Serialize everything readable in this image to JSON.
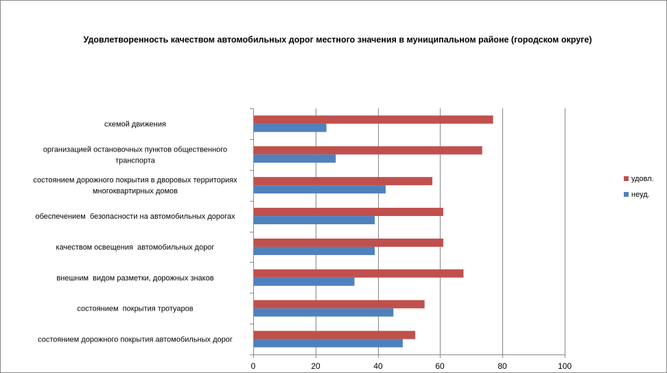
{
  "chart_data": {
    "type": "bar",
    "orientation": "horizontal",
    "title": "Удовлетворенность качеством автомобильных дорог местного значения в муниципальном районе (городском округе)",
    "categories": [
      [
        "состоянием дорожного покрытия автомобильных дорог"
      ],
      [
        "состоянием  покрытия тротуаров"
      ],
      [
        "внешним  видом разметки, дорожных знаков"
      ],
      [
        "качеством освещения  автомобильных дорог"
      ],
      [
        "обеспечением  безопасности на автомобильных дорогах"
      ],
      [
        "состоянием дорожного покрытия в дворовых территориях",
        "многоквартирных домов"
      ],
      [
        "организацией остановочных пунктов общественного",
        "транспорта"
      ],
      [
        "схемой движения"
      ]
    ],
    "series": [
      {
        "name": "неуд.",
        "color": "#4f81bd",
        "values": [
          48,
          45,
          32.5,
          39,
          39,
          42.5,
          26.5,
          23.5
        ]
      },
      {
        "name": "удовл.",
        "color": "#c0504d",
        "values": [
          52,
          55,
          67.5,
          61,
          61,
          57.5,
          73.5,
          77
        ]
      }
    ],
    "xlim": [
      0,
      100
    ],
    "xticks": [
      "0",
      "20",
      "40",
      "60",
      "80",
      "100"
    ],
    "grid": true,
    "legend_position": "right",
    "legend_order": [
      "удовл.",
      "неуд."
    ]
  }
}
